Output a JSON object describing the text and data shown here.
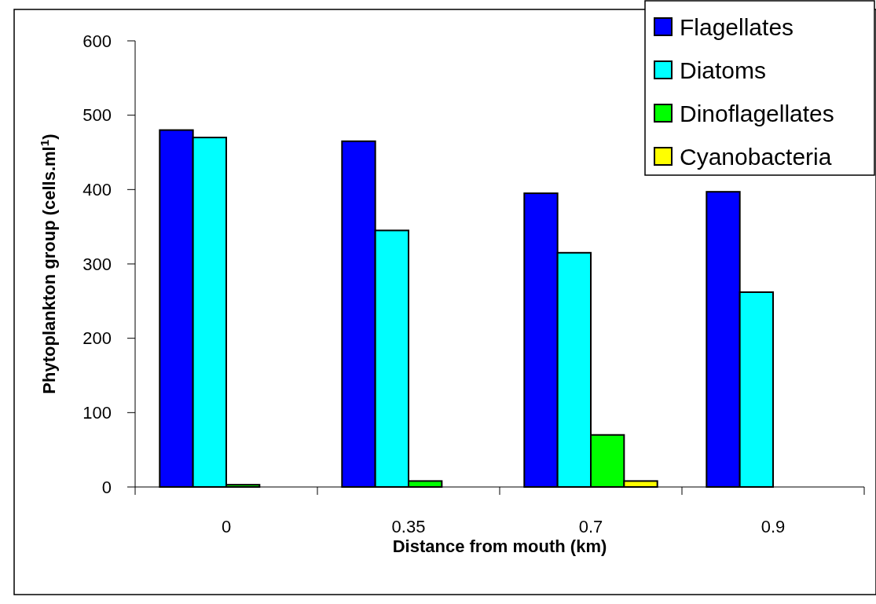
{
  "chart_data": {
    "type": "bar",
    "xlabel": "Distance from mouth (km)",
    "ylabel": "Phytoplankton group (cells.ml$^{1}$)",
    "categories": [
      "0",
      "0.35",
      "0.7",
      "0.9"
    ],
    "series": [
      {
        "name": "Flagellates",
        "color": "#0000ff",
        "values": [
          480,
          465,
          395,
          397
        ]
      },
      {
        "name": "Diatoms",
        "color": "#00ffff",
        "values": [
          470,
          345,
          315,
          262
        ]
      },
      {
        "name": "Dinoflagellates",
        "color": "#00ff00",
        "values": [
          3,
          8,
          70,
          0
        ]
      },
      {
        "name": "Cyanobacteria",
        "color": "#ffff00",
        "values": [
          0,
          0,
          8,
          0
        ]
      }
    ],
    "ylim": [
      0,
      600
    ],
    "yticks": [
      0,
      100,
      200,
      300,
      400,
      500,
      600
    ],
    "grid": false,
    "legend": "top right"
  }
}
